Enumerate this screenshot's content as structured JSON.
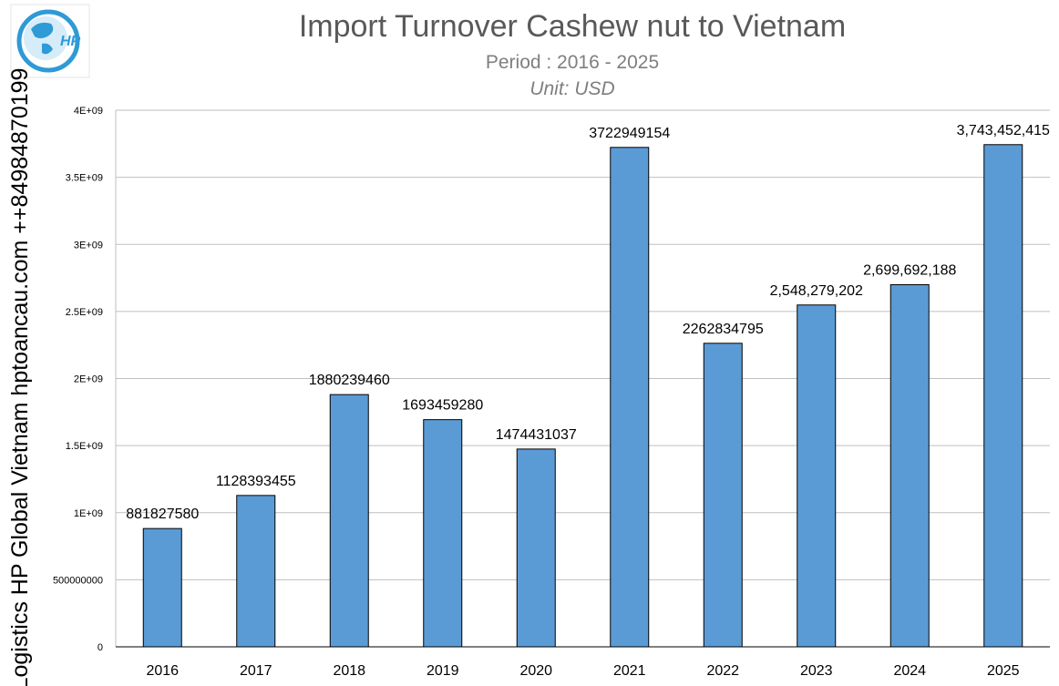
{
  "chart_data": {
    "type": "bar",
    "title": "Import Turnover Cashew nut to Vietnam",
    "subtitle": "Period : 2016 - 2025",
    "unit": "Unit: USD",
    "side_text": "Logistics HP Global Vietnam hptoancau.com ++84984870199",
    "logo_text": "HP",
    "categories": [
      "2016",
      "2017",
      "2018",
      "2019",
      "2020",
      "2021",
      "2022",
      "2023",
      "2024",
      "2025"
    ],
    "values": [
      881827580,
      1128393455,
      1880239460,
      1693459280,
      1474431037,
      3722949154,
      2262834795,
      2548279202,
      2699692188,
      3743452415
    ],
    "data_labels": [
      "881827580",
      "1128393455",
      "1880239460",
      "1693459280",
      "1474431037",
      "3722949154",
      "2262834795",
      "2,548,279,202",
      "2,699,692,188",
      "3,743,452,415"
    ],
    "ylim": [
      0,
      4000000000
    ],
    "yticks": [
      0,
      500000000,
      1000000000,
      1500000000,
      2000000000,
      2500000000,
      3000000000,
      3500000000,
      4000000000
    ],
    "ytick_labels": [
      "0",
      "500000000",
      "1E+09",
      "1.5E+09",
      "2E+09",
      "2.5E+09",
      "3E+09",
      "3.5E+09",
      "4E+09"
    ],
    "grid": true,
    "bar_color": "#5b9bd5",
    "bar_edge_color": "#000000",
    "grid_color": "#bfbfbf"
  }
}
